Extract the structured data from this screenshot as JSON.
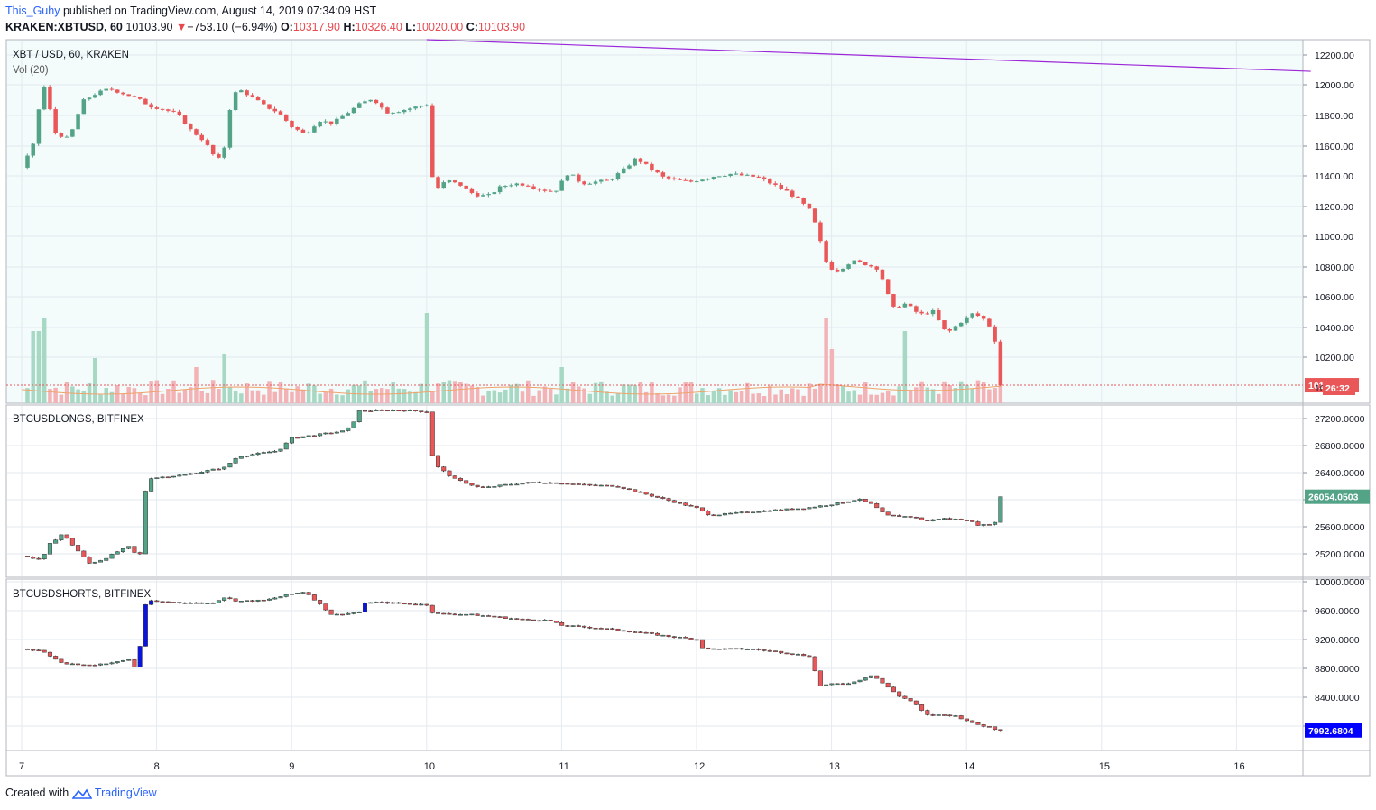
{
  "header": {
    "line1": {
      "user": "This_Guhy",
      "rest": "published on TradingView.com, August 14, 2019 07:34:09 HST"
    },
    "line2": {
      "symbol": "KRAKEN:XBTUSD, 60",
      "last": "10103.90",
      "arrow": "▼",
      "change": "−753.10 (−6.94%)",
      "o_label": "O:",
      "o_val": "10317.90",
      "h_label": "H:",
      "h_val": "10326.40",
      "l_label": "L:",
      "l_val": "10020.00",
      "c_label": "C:",
      "c_val": "10103.90"
    }
  },
  "footer": {
    "created": "Created with",
    "brand": "TradingView"
  },
  "colors": {
    "up": "#53a387",
    "down": "#ea5759",
    "up_vol": "#a7d8c4",
    "down_vol": "#f3b3b6",
    "blue": "#0a14e0",
    "grid": "#e3eaef",
    "bg_main": "#f3fbfb",
    "trendline": "#9c27d8",
    "ma": "#f0a36b",
    "last_price_bg": "#ea5759",
    "longs_label_bg": "#53a387",
    "shorts_label_bg": "#0000ff"
  },
  "chart_data": [
    {
      "type": "candlestick",
      "title": "XBT / USD, 60, KRAKEN",
      "subtitle": "Vol (20)",
      "y_ticks": [
        "12200.00",
        "12000.00",
        "11800.00",
        "11600.00",
        "11400.00",
        "11200.00",
        "11000.00",
        "10800.00",
        "10600.00",
        "10400.00",
        "10200.00"
      ],
      "ylim": [
        9990,
        12290
      ],
      "last_price_label": "10103.90",
      "countdown_label": "26:32",
      "volume_axis_fragment": "10",
      "trendline": {
        "from": {
          "day": 10.0,
          "price": 12290
        },
        "to": {
          "day": 16.55,
          "price": 12090
        }
      },
      "close_path": [
        [
          7.0,
          11480
        ],
        [
          7.1,
          11650
        ],
        [
          7.15,
          12050
        ],
        [
          7.25,
          11700
        ],
        [
          7.35,
          11660
        ],
        [
          7.45,
          11900
        ],
        [
          7.55,
          11950
        ],
        [
          7.65,
          11980
        ],
        [
          7.75,
          11950
        ],
        [
          7.85,
          11920
        ],
        [
          7.95,
          11870
        ],
        [
          8.05,
          11850
        ],
        [
          8.15,
          11820
        ],
        [
          8.25,
          11720
        ],
        [
          8.35,
          11650
        ],
        [
          8.45,
          11520
        ],
        [
          8.5,
          11610
        ],
        [
          8.55,
          11900
        ],
        [
          8.6,
          11980
        ],
        [
          8.7,
          11930
        ],
        [
          8.8,
          11870
        ],
        [
          8.9,
          11830
        ],
        [
          9.0,
          11740
        ],
        [
          9.1,
          11690
        ],
        [
          9.2,
          11780
        ],
        [
          9.3,
          11760
        ],
        [
          9.4,
          11820
        ],
        [
          9.5,
          11880
        ],
        [
          9.6,
          11920
        ],
        [
          9.7,
          11830
        ],
        [
          9.8,
          11840
        ],
        [
          9.9,
          11860
        ],
        [
          10.0,
          11880
        ],
        [
          10.05,
          11330
        ],
        [
          10.15,
          11400
        ],
        [
          10.25,
          11370
        ],
        [
          10.35,
          11310
        ],
        [
          10.45,
          11300
        ],
        [
          10.55,
          11360
        ],
        [
          10.65,
          11380
        ],
        [
          10.75,
          11370
        ],
        [
          10.85,
          11340
        ],
        [
          10.95,
          11330
        ],
        [
          11.05,
          11450
        ],
        [
          11.15,
          11380
        ],
        [
          11.25,
          11390
        ],
        [
          11.35,
          11400
        ],
        [
          11.45,
          11460
        ],
        [
          11.55,
          11540
        ],
        [
          11.65,
          11480
        ],
        [
          11.75,
          11420
        ],
        [
          11.85,
          11400
        ],
        [
          11.95,
          11390
        ],
        [
          12.05,
          11410
        ],
        [
          12.15,
          11430
        ],
        [
          12.25,
          11440
        ],
        [
          12.35,
          11430
        ],
        [
          12.45,
          11420
        ],
        [
          12.55,
          11380
        ],
        [
          12.65,
          11340
        ],
        [
          12.75,
          11280
        ],
        [
          12.85,
          11200
        ],
        [
          12.92,
          11000
        ],
        [
          12.97,
          10850
        ],
        [
          13.05,
          10830
        ],
        [
          13.15,
          10890
        ],
        [
          13.25,
          10870
        ],
        [
          13.35,
          10840
        ],
        [
          13.45,
          10590
        ],
        [
          13.55,
          10620
        ],
        [
          13.65,
          10550
        ],
        [
          13.75,
          10570
        ],
        [
          13.85,
          10430
        ],
        [
          13.95,
          10500
        ],
        [
          14.05,
          10560
        ],
        [
          14.15,
          10510
        ],
        [
          14.2,
          10420
        ],
        [
          14.28,
          10103.9
        ]
      ],
      "volume_ma_level": 0.07
    },
    {
      "type": "candlestick",
      "title": "BTCUSDLONGS, BITFINEX",
      "y_ticks": [
        "27200.0000",
        "26800.0000",
        "26400.0000",
        "26000.0000",
        "25600.0000",
        "25200.0000"
      ],
      "ylim": [
        24960,
        27300
      ],
      "last_value_label": "26054.0503",
      "close_path": [
        [
          7.0,
          25250
        ],
        [
          7.15,
          25200
        ],
        [
          7.2,
          25400
        ],
        [
          7.3,
          25550
        ],
        [
          7.4,
          25350
        ],
        [
          7.5,
          25150
        ],
        [
          7.6,
          25200
        ],
        [
          7.7,
          25300
        ],
        [
          7.8,
          25380
        ],
        [
          7.85,
          25250
        ],
        [
          7.9,
          25300
        ],
        [
          7.92,
          26300
        ],
        [
          8.2,
          26350
        ],
        [
          8.5,
          26450
        ],
        [
          8.6,
          26600
        ],
        [
          8.9,
          26680
        ],
        [
          9.0,
          26850
        ],
        [
          9.2,
          26900
        ],
        [
          9.4,
          26950
        ],
        [
          9.45,
          27050
        ],
        [
          9.5,
          27220
        ],
        [
          9.8,
          27230
        ],
        [
          10.0,
          27210
        ],
        [
          10.05,
          26500
        ],
        [
          10.2,
          26300
        ],
        [
          10.4,
          26170
        ],
        [
          10.6,
          26220
        ],
        [
          10.8,
          26250
        ],
        [
          11.0,
          26240
        ],
        [
          11.2,
          26210
        ],
        [
          11.4,
          26200
        ],
        [
          11.6,
          26100
        ],
        [
          11.8,
          26000
        ],
        [
          12.0,
          25900
        ],
        [
          12.1,
          25800
        ],
        [
          12.4,
          25850
        ],
        [
          12.8,
          25900
        ],
        [
          13.0,
          25950
        ],
        [
          13.2,
          26020
        ],
        [
          13.3,
          25950
        ],
        [
          13.4,
          25800
        ],
        [
          13.6,
          25780
        ],
        [
          13.7,
          25720
        ],
        [
          13.8,
          25760
        ],
        [
          14.0,
          25740
        ],
        [
          14.1,
          25660
        ],
        [
          14.25,
          25720
        ],
        [
          14.28,
          26054.05
        ]
      ]
    },
    {
      "type": "candlestick",
      "title": "BTCUSDSHORTS, BITFINEX",
      "y_ticks": [
        "10000.0000",
        "9600.0000",
        "9200.0000",
        "8800.0000",
        "8400.0000",
        "8000.0000"
      ],
      "ylim": [
        7720,
        10050
      ],
      "last_value_label": "7992.6804",
      "close_path": [
        [
          7.0,
          9100
        ],
        [
          7.15,
          9080
        ],
        [
          7.3,
          8900
        ],
        [
          7.5,
          8880
        ],
        [
          7.7,
          8920
        ],
        [
          7.8,
          8960
        ],
        [
          7.85,
          8800
        ],
        [
          7.92,
          9750
        ],
        [
          8.2,
          9730
        ],
        [
          8.4,
          9720
        ],
        [
          8.5,
          9800
        ],
        [
          8.6,
          9750
        ],
        [
          8.8,
          9760
        ],
        [
          9.0,
          9850
        ],
        [
          9.1,
          9880
        ],
        [
          9.3,
          9560
        ],
        [
          9.5,
          9600
        ],
        [
          9.55,
          9740
        ],
        [
          9.8,
          9720
        ],
        [
          10.0,
          9700
        ],
        [
          10.05,
          9580
        ],
        [
          10.3,
          9570
        ],
        [
          10.5,
          9540
        ],
        [
          10.7,
          9500
        ],
        [
          10.9,
          9490
        ],
        [
          11.0,
          9420
        ],
        [
          11.3,
          9380
        ],
        [
          11.6,
          9320
        ],
        [
          11.8,
          9270
        ],
        [
          12.0,
          9230
        ],
        [
          12.05,
          9100
        ],
        [
          12.4,
          9100
        ],
        [
          12.6,
          9060
        ],
        [
          12.85,
          9000
        ],
        [
          12.9,
          8600
        ],
        [
          13.0,
          8620
        ],
        [
          13.15,
          8640
        ],
        [
          13.3,
          8750
        ],
        [
          13.4,
          8600
        ],
        [
          13.5,
          8460
        ],
        [
          13.6,
          8380
        ],
        [
          13.7,
          8200
        ],
        [
          13.9,
          8200
        ],
        [
          14.0,
          8130
        ],
        [
          14.1,
          8060
        ],
        [
          14.2,
          8030
        ],
        [
          14.25,
          7920
        ],
        [
          14.28,
          7992.68
        ]
      ]
    }
  ],
  "x_axis": {
    "ticks": [
      "7",
      "8",
      "9",
      "10",
      "11",
      "12",
      "13",
      "14",
      "15",
      "16"
    ]
  }
}
